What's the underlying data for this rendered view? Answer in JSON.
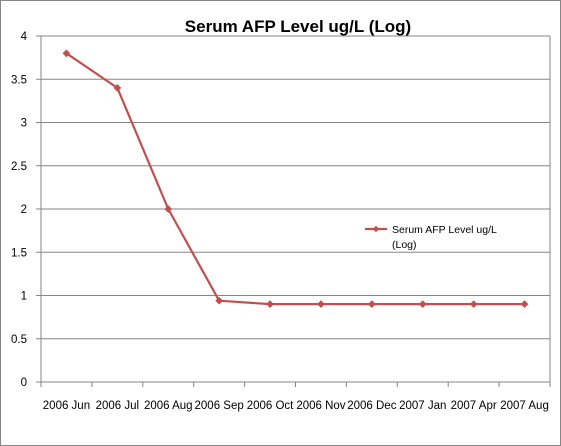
{
  "chart_data": {
    "type": "line",
    "title": "Serum AFP Level ug/L (Log)",
    "xlabel": "",
    "ylabel": "",
    "categories": [
      "2006 Jun",
      "2006 Jul",
      "2006 Aug",
      "2006 Sep",
      "2006 Oct",
      "2006 Nov",
      "2006 Dec",
      "2007 Jan",
      "2007 Apr",
      "2007 Aug"
    ],
    "series": [
      {
        "name": "Serum AFP Level ug/L (Log)",
        "legend_lines": [
          "Serum AFP Level ug/L",
          "(Log)"
        ],
        "values": [
          3.8,
          3.4,
          2.0,
          0.94,
          0.9,
          0.9,
          0.9,
          0.9,
          0.9,
          0.9
        ],
        "color": "#C0504D"
      }
    ],
    "ylim": [
      0,
      4
    ],
    "yticks": [
      "0",
      "0.5",
      "1",
      "1.5",
      "2",
      "2.5",
      "3",
      "3.5",
      "4"
    ],
    "grid": true,
    "legend": "right"
  }
}
